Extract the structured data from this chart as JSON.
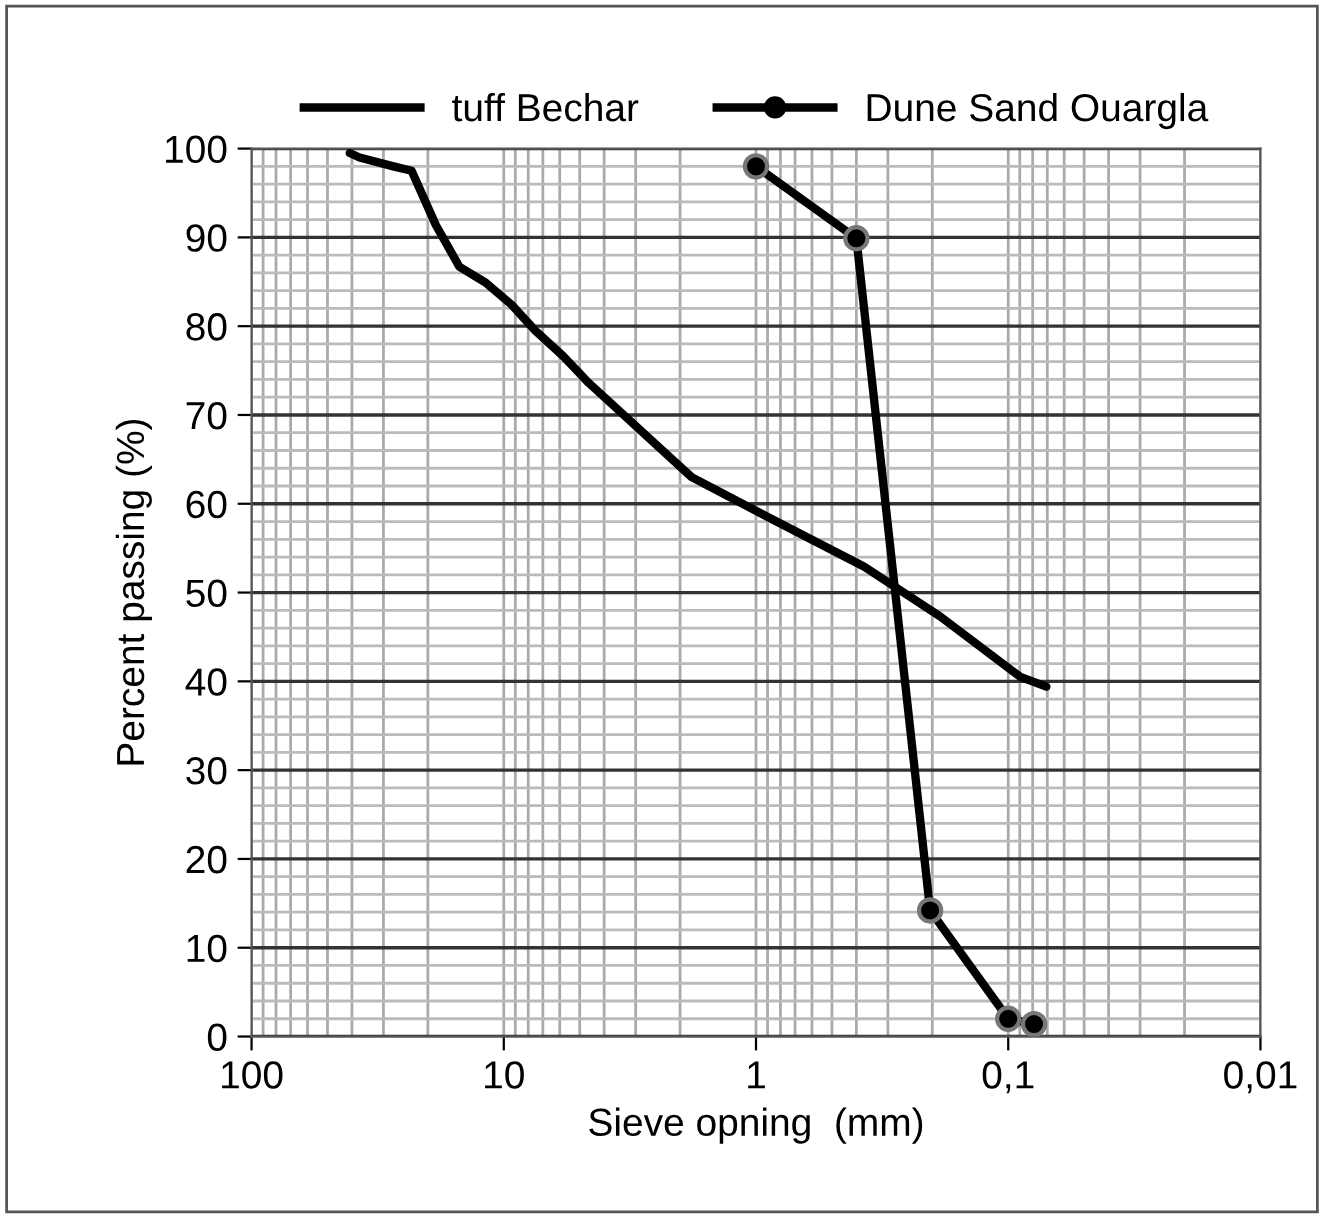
{
  "chart_data": {
    "type": "line",
    "xlabel": "Sieve opning  (mm)",
    "ylabel": "Percent passing (%)",
    "log": "x",
    "xlim": [
      100,
      0.01
    ],
    "xticks": [
      100,
      10,
      1,
      {
        "value": 0.1,
        "label": "0,1"
      },
      {
        "value": 0.01,
        "label": "0,01"
      }
    ],
    "ylim": [
      0,
      100
    ],
    "yticks": [
      0,
      10,
      20,
      30,
      40,
      50,
      60,
      70,
      80,
      90,
      100
    ],
    "grid": true,
    "legend": "top",
    "series": [
      {
        "name": "tuff Bechar",
        "color": "#000000",
        "marker": "none",
        "x": [
          40.8,
          37.3,
          27.4,
          23.2,
          18.6,
          15,
          11.8,
          9.3,
          7.5,
          5.8,
          4.6,
          1.8,
          0.91,
          0.372,
          0.186,
          0.0895,
          0.0706
        ],
        "values": [
          99.5,
          99,
          98,
          97.5,
          91.4,
          86.7,
          84.9,
          82.4,
          79.5,
          76.6,
          73.6,
          63,
          58.6,
          52.9,
          47.3,
          40.5,
          39.4
        ]
      },
      {
        "name": "Dune Sand Ouargla",
        "color": "#000000",
        "marker": "circle",
        "x": [
          1,
          0.4,
          0.204,
          0.1,
          0.079
        ],
        "values": [
          98,
          89.9,
          14.2,
          2,
          1.4
        ]
      }
    ]
  }
}
